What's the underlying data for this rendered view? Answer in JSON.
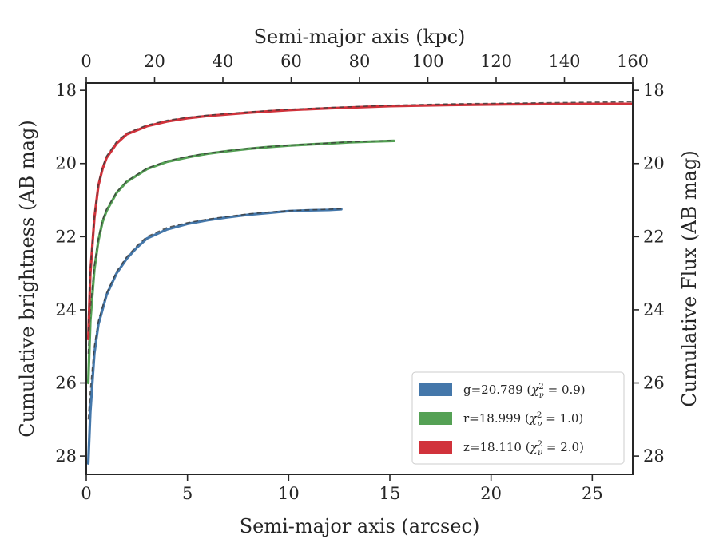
{
  "chart_data": {
    "type": "line",
    "xlabel": "Semi-major axis (arcsec)",
    "xlabel_top": "Semi-major axis (kpc)",
    "ylabel": "Cumulative brightness (AB mag)",
    "ylabel_right": "Cumulative Flux (AB mag)",
    "xlim": [
      0,
      27
    ],
    "xlim_top": [
      0,
      160
    ],
    "ylim": [
      28.5,
      17.8
    ],
    "y_inverted": true,
    "xticks": [
      0,
      5,
      10,
      15,
      20,
      25
    ],
    "xticks_top": [
      0,
      20,
      40,
      60,
      80,
      100,
      120,
      140,
      160
    ],
    "yticks": [
      18,
      20,
      22,
      24,
      26,
      28
    ],
    "grid": false,
    "legend_position": "lower-right",
    "series": [
      {
        "name": "g=20.789 ($\\chi^2_\\nu = 0.9$)",
        "legend_label": "g=20.789",
        "legend_math": "χ",
        "legend_tail": " = 0.9)",
        "color": "#4477aa",
        "x": [
          0.1,
          0.2,
          0.4,
          0.6,
          1.0,
          1.5,
          2.0,
          2.5,
          3.0,
          4.0,
          5.0,
          6.0,
          7.0,
          8.0,
          9.0,
          10.0,
          11.0,
          12.0,
          12.6
        ],
        "y": [
          28.2,
          26.8,
          25.2,
          24.4,
          23.6,
          23.0,
          22.6,
          22.3,
          22.05,
          21.8,
          21.65,
          21.55,
          21.47,
          21.4,
          21.35,
          21.3,
          21.28,
          21.27,
          21.25
        ],
        "model_x": [
          0.1,
          0.2,
          0.4,
          0.6,
          1.0,
          1.5,
          2.0,
          2.5,
          3.0,
          4.0,
          5.0,
          6.0,
          7.0,
          8.0,
          9.0,
          10.0,
          11.0,
          12.0,
          12.6
        ],
        "model_y": [
          27.0,
          26.2,
          25.0,
          24.3,
          23.55,
          22.95,
          22.55,
          22.25,
          22.0,
          21.75,
          21.62,
          21.52,
          21.45,
          21.38,
          21.33,
          21.29,
          21.27,
          21.25,
          21.24
        ]
      },
      {
        "name": "r=18.999 ($\\chi^2_\\nu = 1.0$)",
        "legend_label": "r=18.999",
        "legend_math": "χ",
        "legend_tail": " = 1.0)",
        "color": "#55a155",
        "x": [
          0.1,
          0.2,
          0.4,
          0.6,
          0.8,
          1.0,
          1.5,
          2.0,
          3.0,
          4.0,
          5.0,
          6.0,
          7.0,
          8.0,
          9.0,
          10.0,
          11.0,
          12.0,
          13.0,
          14.0,
          15.2
        ],
        "y": [
          26.0,
          24.3,
          22.9,
          22.1,
          21.6,
          21.3,
          20.8,
          20.5,
          20.15,
          19.95,
          19.83,
          19.73,
          19.66,
          19.6,
          19.55,
          19.51,
          19.48,
          19.45,
          19.42,
          19.4,
          19.38
        ],
        "model_x": [
          0.1,
          0.2,
          0.4,
          0.6,
          0.8,
          1.0,
          1.5,
          2.0,
          3.0,
          4.0,
          5.0,
          6.0,
          7.0,
          8.0,
          9.0,
          10.0,
          11.0,
          12.0,
          13.0,
          14.0,
          15.2
        ],
        "model_y": [
          25.2,
          24.0,
          22.8,
          22.05,
          21.55,
          21.25,
          20.78,
          20.48,
          20.13,
          19.93,
          19.81,
          19.72,
          19.65,
          19.59,
          19.54,
          19.5,
          19.47,
          19.44,
          19.41,
          19.39,
          19.37
        ]
      },
      {
        "name": "z=18.110 ($\\chi^2_\\nu = 2.0$)",
        "legend_label": "z=18.110",
        "legend_math": "χ",
        "legend_tail": " = 2.0)",
        "color": "#d1323b",
        "x": [
          0.1,
          0.2,
          0.4,
          0.6,
          0.8,
          1.0,
          1.5,
          2.0,
          3.0,
          4.0,
          5.0,
          6.0,
          8.0,
          10.0,
          12.0,
          15.0,
          18.0,
          21.0,
          24.0,
          27.0
        ],
        "y": [
          24.8,
          23.0,
          21.5,
          20.6,
          20.15,
          19.85,
          19.45,
          19.2,
          18.98,
          18.85,
          18.76,
          18.7,
          18.61,
          18.54,
          18.49,
          18.43,
          18.4,
          18.38,
          18.37,
          18.37
        ],
        "model_x": [
          0.1,
          0.2,
          0.4,
          0.6,
          0.8,
          1.0,
          1.5,
          2.0,
          3.0,
          4.0,
          5.0,
          6.0,
          8.0,
          10.0,
          12.0,
          15.0,
          18.0,
          21.0,
          24.0,
          27.0
        ],
        "model_y": [
          24.6,
          22.9,
          21.45,
          20.55,
          20.1,
          19.8,
          19.4,
          19.17,
          18.95,
          18.82,
          18.74,
          18.68,
          18.59,
          18.52,
          18.47,
          18.41,
          18.37,
          18.35,
          18.33,
          18.31
        ]
      }
    ]
  }
}
